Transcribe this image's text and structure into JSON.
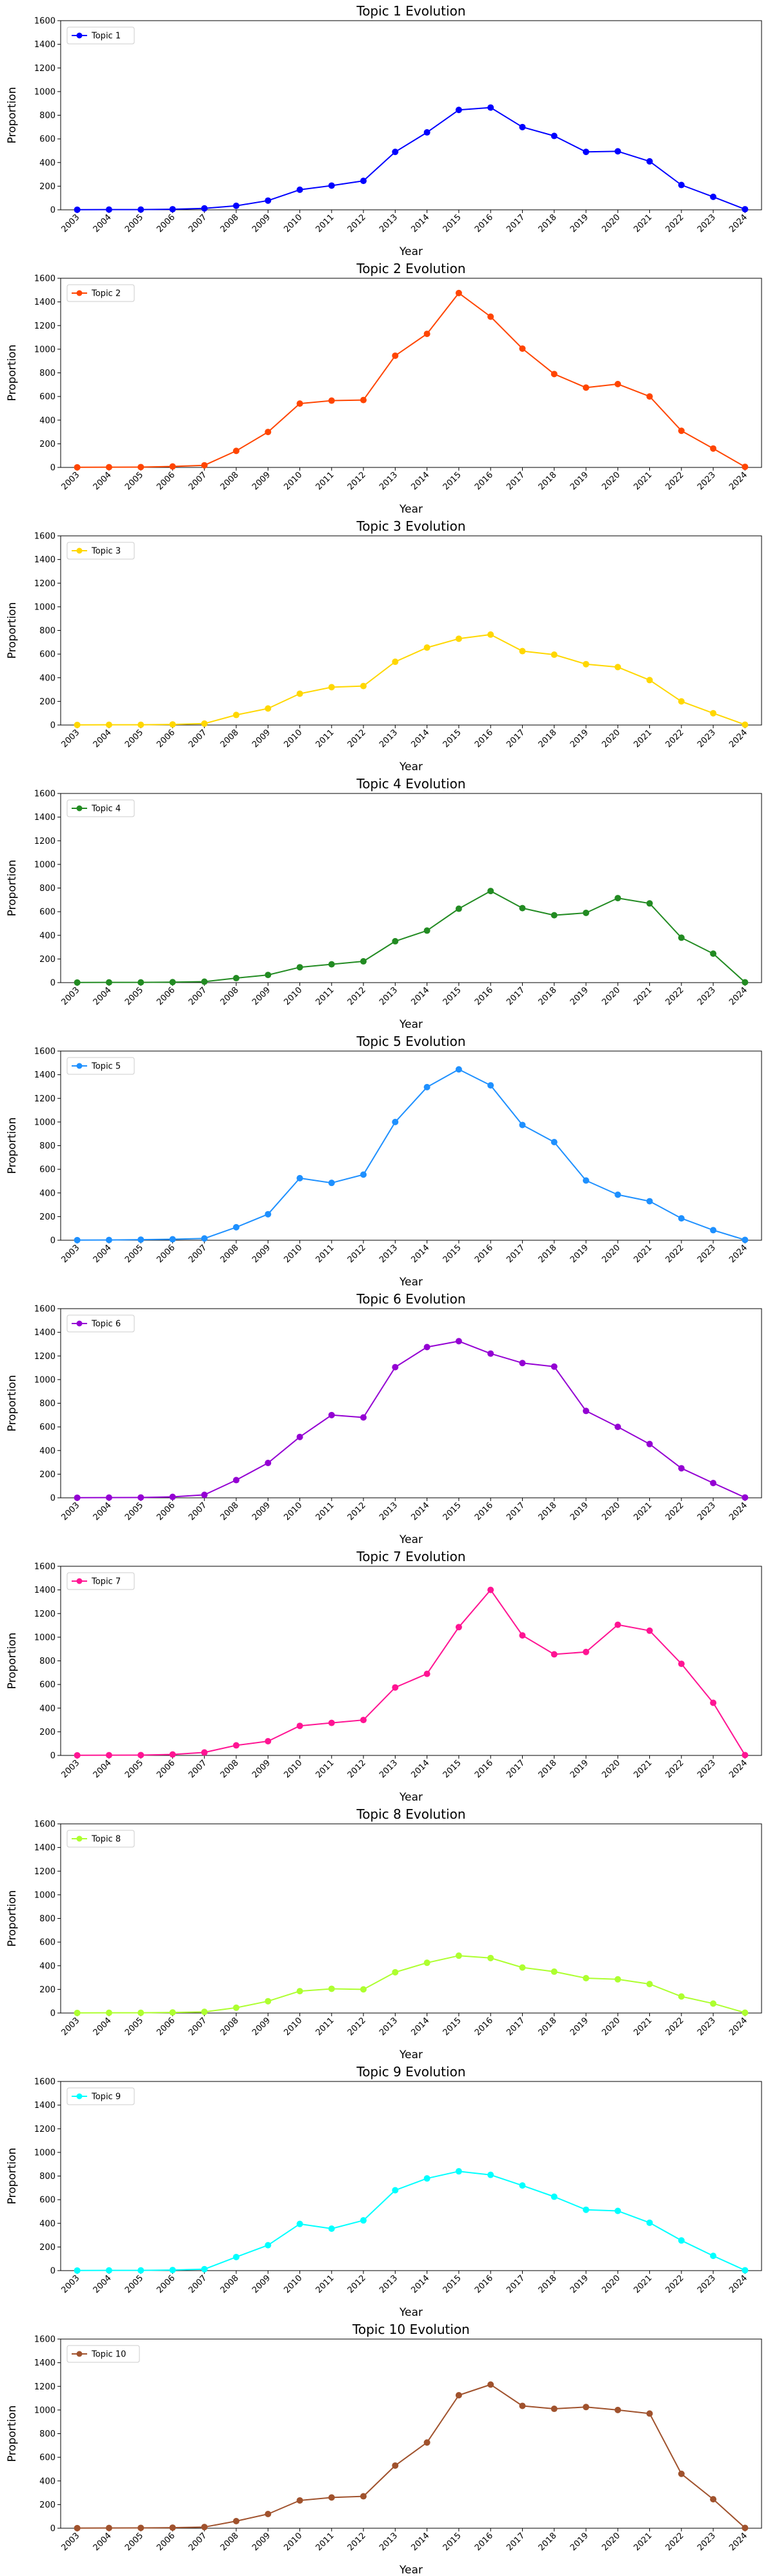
{
  "chart_data": [
    {
      "type": "line",
      "title": "Topic 1 Evolution",
      "xlabel": "Year",
      "ylabel": "Proportion",
      "ylim": [
        0,
        1600
      ],
      "yticks": [
        0,
        200,
        400,
        600,
        800,
        1000,
        1200,
        1400,
        1600
      ],
      "categories": [
        "2003",
        "2004",
        "2005",
        "2006",
        "2007",
        "2008",
        "2009",
        "2010",
        "2011",
        "2012",
        "2013",
        "2014",
        "2015",
        "2016",
        "2017",
        "2018",
        "2019",
        "2020",
        "2021",
        "2022",
        "2023",
        "2024"
      ],
      "legend_position": "top-left",
      "grid": false,
      "series": [
        {
          "name": "Topic 1",
          "color": "#0000ff",
          "values": [
            1,
            2,
            2,
            5,
            12,
            34,
            78,
            170,
            205,
            245,
            490,
            655,
            845,
            865,
            700,
            625,
            490,
            495,
            410,
            210,
            110,
            5
          ]
        }
      ]
    },
    {
      "type": "line",
      "title": "Topic 2 Evolution",
      "xlabel": "Year",
      "ylabel": "Proportion",
      "ylim": [
        0,
        1600
      ],
      "yticks": [
        0,
        200,
        400,
        600,
        800,
        1000,
        1200,
        1400,
        1600
      ],
      "categories": [
        "2003",
        "2004",
        "2005",
        "2006",
        "2007",
        "2008",
        "2009",
        "2010",
        "2011",
        "2012",
        "2013",
        "2014",
        "2015",
        "2016",
        "2017",
        "2018",
        "2019",
        "2020",
        "2021",
        "2022",
        "2023",
        "2024"
      ],
      "legend_position": "top-left",
      "grid": false,
      "series": [
        {
          "name": "Topic 2",
          "color": "#ff4500",
          "values": [
            1,
            2,
            3,
            8,
            18,
            140,
            300,
            540,
            565,
            570,
            945,
            1130,
            1475,
            1275,
            1005,
            790,
            675,
            705,
            600,
            310,
            160,
            5
          ]
        }
      ]
    },
    {
      "type": "line",
      "title": "Topic 3 Evolution",
      "xlabel": "Year",
      "ylabel": "Proportion",
      "ylim": [
        0,
        1600
      ],
      "yticks": [
        0,
        200,
        400,
        600,
        800,
        1000,
        1200,
        1400,
        1600
      ],
      "categories": [
        "2003",
        "2004",
        "2005",
        "2006",
        "2007",
        "2008",
        "2009",
        "2010",
        "2011",
        "2012",
        "2013",
        "2014",
        "2015",
        "2016",
        "2017",
        "2018",
        "2019",
        "2020",
        "2021",
        "2022",
        "2023",
        "2024"
      ],
      "legend_position": "top-left",
      "grid": false,
      "series": [
        {
          "name": "Topic 3",
          "color": "#ffd700",
          "values": [
            1,
            2,
            2,
            5,
            12,
            85,
            140,
            265,
            320,
            330,
            535,
            655,
            730,
            765,
            625,
            595,
            515,
            490,
            380,
            200,
            100,
            3
          ]
        }
      ]
    },
    {
      "type": "line",
      "title": "Topic 4 Evolution",
      "xlabel": "Year",
      "ylabel": "Proportion",
      "ylim": [
        0,
        1600
      ],
      "yticks": [
        0,
        200,
        400,
        600,
        800,
        1000,
        1200,
        1400,
        1600
      ],
      "categories": [
        "2003",
        "2004",
        "2005",
        "2006",
        "2007",
        "2008",
        "2009",
        "2010",
        "2011",
        "2012",
        "2013",
        "2014",
        "2015",
        "2016",
        "2017",
        "2018",
        "2019",
        "2020",
        "2021",
        "2022",
        "2023",
        "2024"
      ],
      "legend_position": "top-left",
      "grid": false,
      "series": [
        {
          "name": "Topic 4",
          "color": "#228b22",
          "values": [
            1,
            2,
            2,
            4,
            8,
            38,
            65,
            130,
            155,
            180,
            350,
            440,
            625,
            775,
            630,
            570,
            590,
            715,
            670,
            380,
            245,
            3
          ]
        }
      ]
    },
    {
      "type": "line",
      "title": "Topic 5 Evolution",
      "xlabel": "Year",
      "ylabel": "Proportion",
      "ylim": [
        0,
        1600
      ],
      "yticks": [
        0,
        200,
        400,
        600,
        800,
        1000,
        1200,
        1400,
        1600
      ],
      "categories": [
        "2003",
        "2004",
        "2005",
        "2006",
        "2007",
        "2008",
        "2009",
        "2010",
        "2011",
        "2012",
        "2013",
        "2014",
        "2015",
        "2016",
        "2017",
        "2018",
        "2019",
        "2020",
        "2021",
        "2022",
        "2023",
        "2024"
      ],
      "legend_position": "top-left",
      "grid": false,
      "series": [
        {
          "name": "Topic 5",
          "color": "#1e90ff",
          "values": [
            1,
            2,
            5,
            8,
            15,
            110,
            220,
            525,
            485,
            555,
            1000,
            1295,
            1445,
            1310,
            975,
            830,
            505,
            385,
            330,
            185,
            85,
            3
          ]
        }
      ]
    },
    {
      "type": "line",
      "title": "Topic 6 Evolution",
      "xlabel": "Year",
      "ylabel": "Proportion",
      "ylim": [
        0,
        1600
      ],
      "yticks": [
        0,
        200,
        400,
        600,
        800,
        1000,
        1200,
        1400,
        1600
      ],
      "categories": [
        "2003",
        "2004",
        "2005",
        "2006",
        "2007",
        "2008",
        "2009",
        "2010",
        "2011",
        "2012",
        "2013",
        "2014",
        "2015",
        "2016",
        "2017",
        "2018",
        "2019",
        "2020",
        "2021",
        "2022",
        "2023",
        "2024"
      ],
      "legend_position": "top-left",
      "grid": false,
      "series": [
        {
          "name": "Topic 6",
          "color": "#9400d3",
          "values": [
            1,
            2,
            3,
            8,
            25,
            150,
            295,
            515,
            700,
            680,
            1105,
            1275,
            1325,
            1220,
            1140,
            1110,
            735,
            600,
            455,
            250,
            125,
            3
          ]
        }
      ]
    },
    {
      "type": "line",
      "title": "Topic 7 Evolution",
      "xlabel": "Year",
      "ylabel": "Proportion",
      "ylim": [
        0,
        1600
      ],
      "yticks": [
        0,
        200,
        400,
        600,
        800,
        1000,
        1200,
        1400,
        1600
      ],
      "categories": [
        "2003",
        "2004",
        "2005",
        "2006",
        "2007",
        "2008",
        "2009",
        "2010",
        "2011",
        "2012",
        "2013",
        "2014",
        "2015",
        "2016",
        "2017",
        "2018",
        "2019",
        "2020",
        "2021",
        "2022",
        "2023",
        "2024"
      ],
      "legend_position": "top-left",
      "grid": false,
      "series": [
        {
          "name": "Topic 7",
          "color": "#ff1493",
          "values": [
            1,
            2,
            3,
            8,
            25,
            85,
            120,
            250,
            275,
            300,
            575,
            690,
            1085,
            1400,
            1015,
            855,
            875,
            1105,
            1055,
            775,
            445,
            3
          ]
        }
      ]
    },
    {
      "type": "line",
      "title": "Topic 8 Evolution",
      "xlabel": "Year",
      "ylabel": "Proportion",
      "ylim": [
        0,
        1600
      ],
      "yticks": [
        0,
        200,
        400,
        600,
        800,
        1000,
        1200,
        1400,
        1600
      ],
      "categories": [
        "2003",
        "2004",
        "2005",
        "2006",
        "2007",
        "2008",
        "2009",
        "2010",
        "2011",
        "2012",
        "2013",
        "2014",
        "2015",
        "2016",
        "2017",
        "2018",
        "2019",
        "2020",
        "2021",
        "2022",
        "2023",
        "2024"
      ],
      "legend_position": "top-left",
      "grid": false,
      "series": [
        {
          "name": "Topic 8",
          "color": "#adff2f",
          "values": [
            1,
            2,
            2,
            5,
            10,
            45,
            100,
            185,
            205,
            200,
            345,
            425,
            485,
            465,
            385,
            350,
            295,
            285,
            245,
            140,
            80,
            3
          ]
        }
      ]
    },
    {
      "type": "line",
      "title": "Topic 9 Evolution",
      "xlabel": "Year",
      "ylabel": "Proportion",
      "ylim": [
        0,
        1600
      ],
      "yticks": [
        0,
        200,
        400,
        600,
        800,
        1000,
        1200,
        1400,
        1600
      ],
      "categories": [
        "2003",
        "2004",
        "2005",
        "2006",
        "2007",
        "2008",
        "2009",
        "2010",
        "2011",
        "2012",
        "2013",
        "2014",
        "2015",
        "2016",
        "2017",
        "2018",
        "2019",
        "2020",
        "2021",
        "2022",
        "2023",
        "2024"
      ],
      "legend_position": "top-left",
      "grid": false,
      "series": [
        {
          "name": "Topic 9",
          "color": "#00ffff",
          "values": [
            1,
            2,
            2,
            5,
            12,
            115,
            215,
            395,
            355,
            425,
            680,
            780,
            840,
            810,
            720,
            625,
            515,
            505,
            405,
            255,
            125,
            3
          ]
        }
      ]
    },
    {
      "type": "line",
      "title": "Topic 10 Evolution",
      "xlabel": "Year",
      "ylabel": "Proportion",
      "ylim": [
        0,
        1600
      ],
      "yticks": [
        0,
        200,
        400,
        600,
        800,
        1000,
        1200,
        1400,
        1600
      ],
      "categories": [
        "2003",
        "2004",
        "2005",
        "2006",
        "2007",
        "2008",
        "2009",
        "2010",
        "2011",
        "2012",
        "2013",
        "2014",
        "2015",
        "2016",
        "2017",
        "2018",
        "2019",
        "2020",
        "2021",
        "2022",
        "2023",
        "2024"
      ],
      "legend_position": "top-left",
      "grid": false,
      "series": [
        {
          "name": "Topic 10",
          "color": "#a0522d",
          "values": [
            1,
            2,
            3,
            5,
            10,
            60,
            120,
            235,
            260,
            270,
            530,
            725,
            1125,
            1215,
            1035,
            1010,
            1025,
            1000,
            970,
            460,
            245,
            3
          ]
        }
      ]
    }
  ]
}
